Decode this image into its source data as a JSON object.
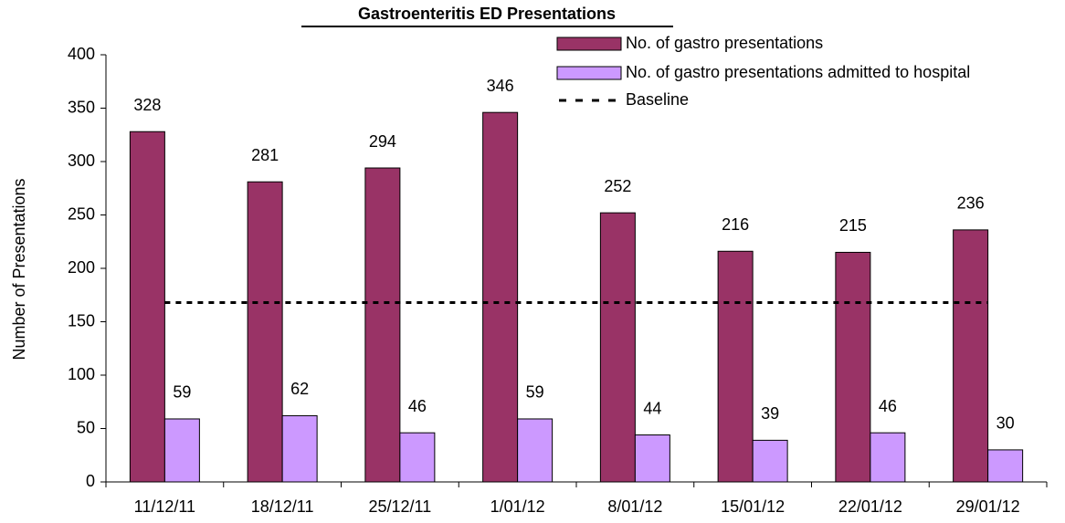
{
  "chart_data": {
    "type": "bar",
    "title": "Gastroenteritis ED Presentations",
    "y_label": "Number of Presentations",
    "categories": [
      "11/12/11",
      "18/12/11",
      "25/12/11",
      "1/01/12",
      "8/01/12",
      "15/01/12",
      "22/01/12",
      "29/01/12"
    ],
    "series": [
      {
        "name": "No. of gastro presentations",
        "color": "#993366",
        "values": [
          328,
          281,
          294,
          346,
          252,
          216,
          215,
          236
        ]
      },
      {
        "name": "No. of gastro presentations admitted to hospital",
        "color": "#cc99ff",
        "values": [
          59,
          62,
          46,
          59,
          44,
          39,
          46,
          30
        ]
      },
      {
        "name": "Baseline",
        "color": "#000000",
        "line": "dashed",
        "values": [
          168,
          168,
          168,
          168,
          168,
          168,
          168,
          168
        ]
      }
    ],
    "ylim": [
      0,
      400
    ],
    "yticks": [
      0,
      50,
      100,
      150,
      200,
      250,
      300,
      350,
      400
    ]
  }
}
